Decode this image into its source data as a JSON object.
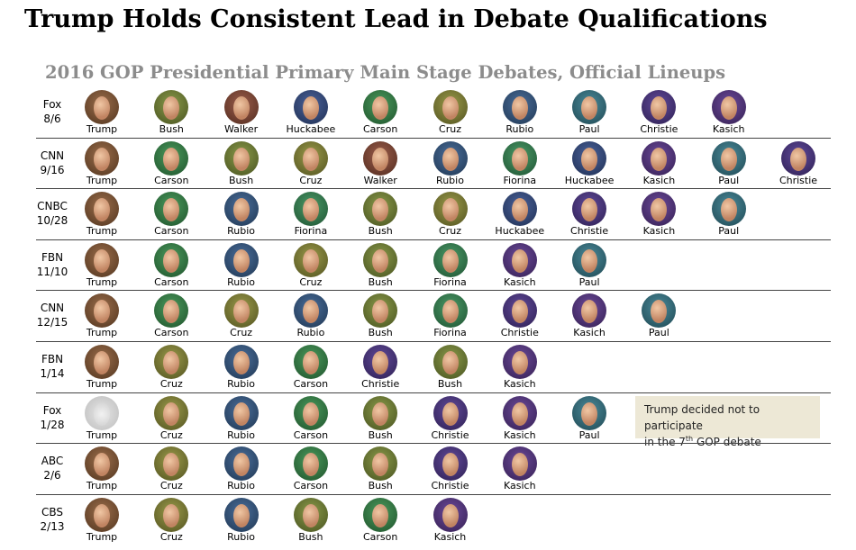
{
  "header": {
    "title": "Trump Holds Consistent Lead in Debate Qualifications",
    "subtitle": "2016 GOP Presidential Primary Main Stage Debates, Official Lineups"
  },
  "debates": [
    {
      "network": "Fox",
      "date": "8/6",
      "candidates": [
        "Trump",
        "Bush",
        "Walker",
        "Huckabee",
        "Carson",
        "Cruz",
        "Rubio",
        "Paul",
        "Christie",
        "Kasich"
      ]
    },
    {
      "network": "CNN",
      "date": "9/16",
      "candidates": [
        "Trump",
        "Carson",
        "Bush",
        "Cruz",
        "Walker",
        "Rubio",
        "Fiorina",
        "Huckabee",
        "Kasich",
        "Paul",
        "Christie"
      ]
    },
    {
      "network": "CNBC",
      "date": "10/28",
      "candidates": [
        "Trump",
        "Carson",
        "Rubio",
        "Fiorina",
        "Bush",
        "Cruz",
        "Huckabee",
        "Christie",
        "Kasich",
        "Paul"
      ]
    },
    {
      "network": "FBN",
      "date": "11/10",
      "candidates": [
        "Trump",
        "Carson",
        "Rubio",
        "Cruz",
        "Bush",
        "Fiorina",
        "Kasich",
        "Paul"
      ]
    },
    {
      "network": "CNN",
      "date": "12/15",
      "candidates": [
        "Trump",
        "Carson",
        "Cruz",
        "Rubio",
        "Bush",
        "Fiorina",
        "Christie",
        "Kasich",
        "Paul"
      ]
    },
    {
      "network": "FBN",
      "date": "1/14",
      "candidates": [
        "Trump",
        "Cruz",
        "Rubio",
        "Carson",
        "Christie",
        "Bush",
        "Kasich"
      ]
    },
    {
      "network": "Fox",
      "date": "1/28",
      "candidates": [
        "Trump",
        "Cruz",
        "Rubio",
        "Carson",
        "Bush",
        "Christie",
        "Kasich",
        "Paul"
      ],
      "absent_index": 0
    },
    {
      "network": "ABC",
      "date": "2/6",
      "candidates": [
        "Trump",
        "Cruz",
        "Rubio",
        "Carson",
        "Bush",
        "Christie",
        "Kasich"
      ]
    },
    {
      "network": "CBS",
      "date": "2/13",
      "candidates": [
        "Trump",
        "Cruz",
        "Rubio",
        "Bush",
        "Carson",
        "Kasich"
      ]
    }
  ],
  "note": {
    "line1": "Trump decided not to participate",
    "line2_start": "in the 7",
    "superscript": "th",
    "line2_end": " GOP debate"
  }
}
